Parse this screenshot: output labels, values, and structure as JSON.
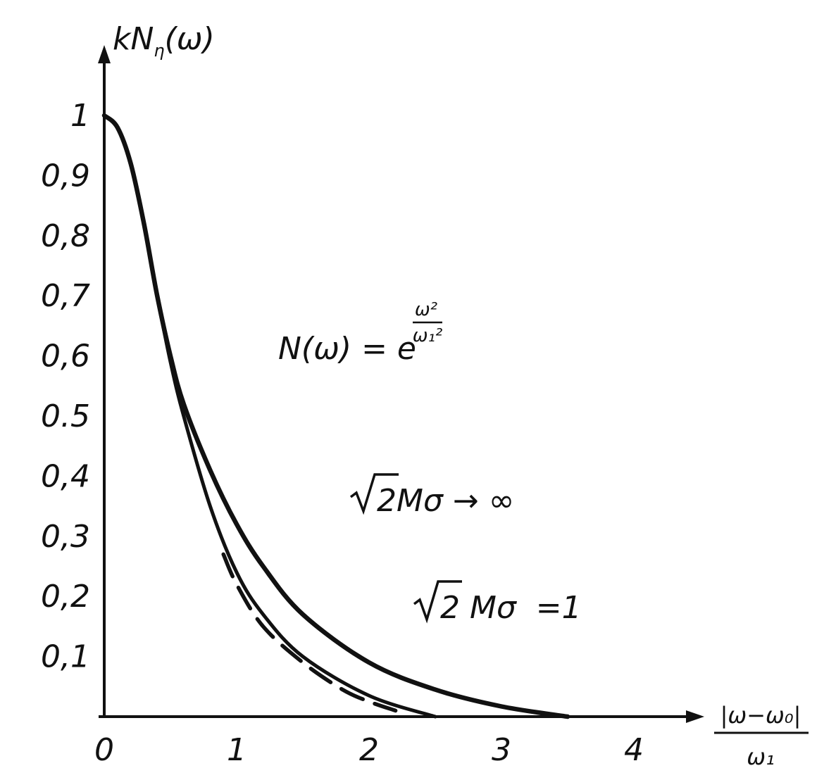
{
  "chart_data": {
    "type": "line",
    "title": "",
    "ylabel": {
      "main": "kN",
      "sub": "η",
      "arg": "(ω)"
    },
    "xlabel": {
      "numerator": "|ω−ω₀|",
      "denominator": "ω₁"
    },
    "xlim": [
      0,
      4.5
    ],
    "ylim": [
      0,
      1
    ],
    "x_ticks": [
      "0",
      "1",
      "2",
      "3",
      "4"
    ],
    "y_ticks": [
      "0,1",
      "0,2",
      "0,3",
      "0,4",
      "0.5",
      "0,6",
      "0,7",
      "0,8",
      "0,9",
      "1"
    ],
    "grid": false,
    "legend": "none",
    "series": [
      {
        "style": "solid-thick",
        "x": [
          0,
          0.1,
          0.2,
          0.3,
          0.4,
          0.5,
          0.6,
          0.8,
          1.0,
          1.2,
          1.5,
          2.0,
          2.5,
          3.0,
          3.5
        ],
        "y": [
          1.0,
          0.98,
          0.92,
          0.82,
          0.7,
          0.6,
          0.52,
          0.41,
          0.32,
          0.25,
          0.17,
          0.09,
          0.045,
          0.017,
          0.0
        ]
      },
      {
        "style": "solid",
        "x": [
          0,
          0.1,
          0.2,
          0.3,
          0.4,
          0.5,
          0.6,
          0.8,
          1.0,
          1.2,
          1.5,
          2.0,
          2.5
        ],
        "y": [
          1.0,
          0.98,
          0.92,
          0.82,
          0.7,
          0.59,
          0.5,
          0.35,
          0.24,
          0.17,
          0.1,
          0.035,
          0.0
        ]
      },
      {
        "style": "dashed",
        "x": [
          0.9,
          1.0,
          1.2,
          1.5,
          1.8,
          2.0,
          2.2
        ],
        "y": [
          0.27,
          0.22,
          0.15,
          0.09,
          0.045,
          0.025,
          0.01
        ]
      }
    ],
    "annotations": [
      {
        "base": "N(ω) = e",
        "exp_num": "ω²",
        "exp_den": "ω₁²"
      },
      {
        "radical": "2",
        "text": " Mσ → ∞"
      },
      {
        "radical": "2",
        "text": " Mσ  =1"
      }
    ]
  }
}
